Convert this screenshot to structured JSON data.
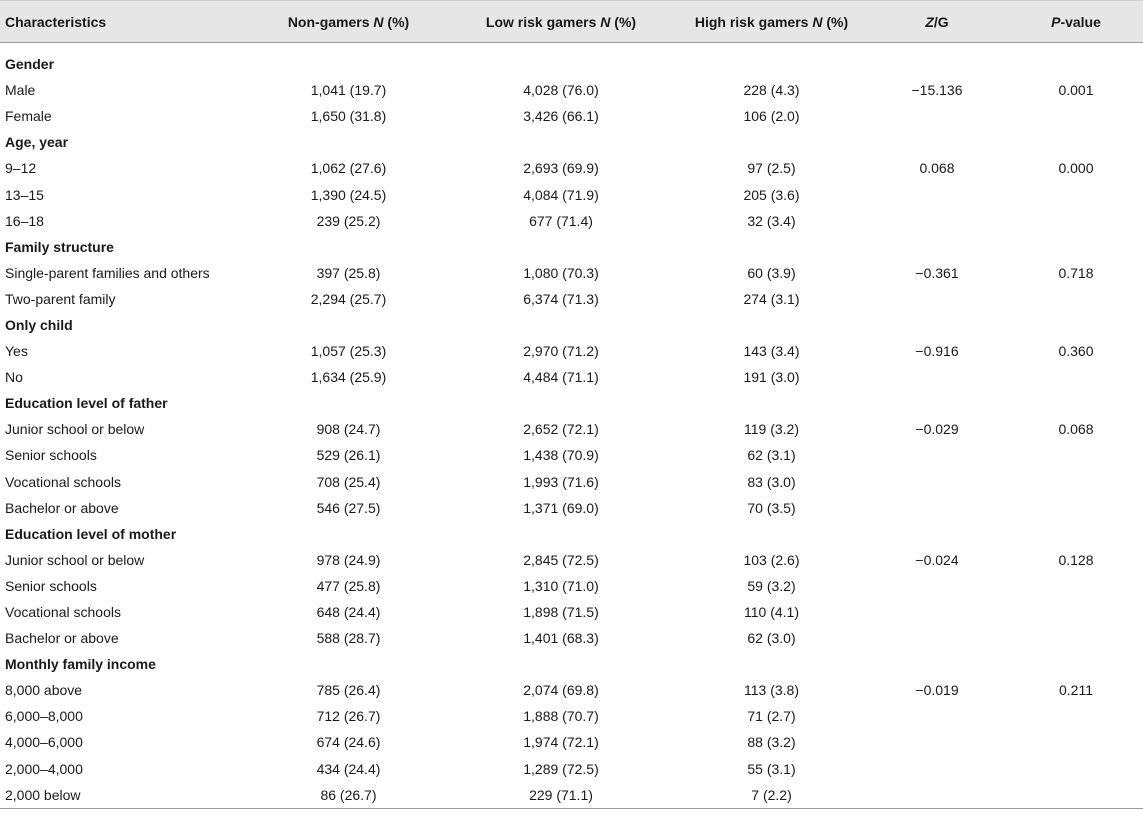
{
  "table": {
    "headers": {
      "characteristics": "Characteristics",
      "non_gamers_pre": "Non-gamers ",
      "non_gamers_n": "N",
      "non_gamers_post": " (%)",
      "low_risk_pre": "Low risk gamers ",
      "low_risk_n": "N",
      "low_risk_post": " (%)",
      "high_risk_pre": "High risk gamers ",
      "high_risk_n": "N",
      "high_risk_post": " (%)",
      "zg_z": "Z",
      "zg_post": "/G",
      "p_p": "P",
      "p_post": "-value"
    },
    "rows": [
      {
        "label": "Gender",
        "group": true,
        "non": "",
        "low": "",
        "high": "",
        "zg": "",
        "p": ""
      },
      {
        "label": "Male",
        "non": "1,041 (19.7)",
        "low": "4,028 (76.0)",
        "high": "228 (4.3)",
        "zg": "−15.136",
        "p": "0.001"
      },
      {
        "label": "Female",
        "non": "1,650 (31.8)",
        "low": "3,426 (66.1)",
        "high": "106 (2.0)",
        "zg": "",
        "p": ""
      },
      {
        "label": "Age, year",
        "group": true,
        "non": "",
        "low": "",
        "high": "",
        "zg": "",
        "p": ""
      },
      {
        "label": "9–12",
        "non": "1,062 (27.6)",
        "low": "2,693 (69.9)",
        "high": "97 (2.5)",
        "zg": "0.068",
        "p": "0.000"
      },
      {
        "label": "13–15",
        "non": "1,390 (24.5)",
        "low": "4,084 (71.9)",
        "high": "205 (3.6)",
        "zg": "",
        "p": ""
      },
      {
        "label": "16–18",
        "non": "239 (25.2)",
        "low": "677 (71.4)",
        "high": "32 (3.4)",
        "zg": "",
        "p": ""
      },
      {
        "label": "Family structure",
        "group": true,
        "non": "",
        "low": "",
        "high": "",
        "zg": "",
        "p": ""
      },
      {
        "label": "Single-parent families and others",
        "non": "397 (25.8)",
        "low": "1,080 (70.3)",
        "high": "60 (3.9)",
        "zg": "−0.361",
        "p": "0.718"
      },
      {
        "label": "Two-parent family",
        "non": "2,294 (25.7)",
        "low": "6,374 (71.3)",
        "high": "274 (3.1)",
        "zg": "",
        "p": ""
      },
      {
        "label": "Only child",
        "group": true,
        "non": "",
        "low": "",
        "high": "",
        "zg": "",
        "p": ""
      },
      {
        "label": "Yes",
        "non": "1,057 (25.3)",
        "low": "2,970 (71.2)",
        "high": "143 (3.4)",
        "zg": "−0.916",
        "p": "0.360"
      },
      {
        "label": "No",
        "non": "1,634 (25.9)",
        "low": "4,484 (71.1)",
        "high": "191 (3.0)",
        "zg": "",
        "p": ""
      },
      {
        "label": "Education level of father",
        "group": true,
        "non": "",
        "low": "",
        "high": "",
        "zg": "",
        "p": ""
      },
      {
        "label": "Junior school or below",
        "non": "908 (24.7)",
        "low": "2,652 (72.1)",
        "high": "119 (3.2)",
        "zg": "−0.029",
        "p": "0.068"
      },
      {
        "label": "Senior schools",
        "non": "529 (26.1)",
        "low": "1,438 (70.9)",
        "high": "62 (3.1)",
        "zg": "",
        "p": ""
      },
      {
        "label": "Vocational schools",
        "non": "708 (25.4)",
        "low": "1,993 (71.6)",
        "high": "83 (3.0)",
        "zg": "",
        "p": ""
      },
      {
        "label": "Bachelor or above",
        "non": "546 (27.5)",
        "low": "1,371 (69.0)",
        "high": "70 (3.5)",
        "zg": "",
        "p": ""
      },
      {
        "label": "Education level of mother",
        "group": true,
        "non": "",
        "low": "",
        "high": "",
        "zg": "",
        "p": ""
      },
      {
        "label": "Junior school or below",
        "non": "978 (24.9)",
        "low": "2,845 (72.5)",
        "high": "103 (2.6)",
        "zg": "−0.024",
        "p": "0.128"
      },
      {
        "label": "Senior schools",
        "non": "477 (25.8)",
        "low": "1,310 (71.0)",
        "high": "59 (3.2)",
        "zg": "",
        "p": ""
      },
      {
        "label": "Vocational schools",
        "non": "648 (24.4)",
        "low": "1,898 (71.5)",
        "high": "110 (4.1)",
        "zg": "",
        "p": ""
      },
      {
        "label": "Bachelor or above",
        "non": "588 (28.7)",
        "low": "1,401 (68.3)",
        "high": "62 (3.0)",
        "zg": "",
        "p": ""
      },
      {
        "label": "Monthly family income",
        "group": true,
        "non": "",
        "low": "",
        "high": "",
        "zg": "",
        "p": ""
      },
      {
        "label": "8,000 above",
        "non": "785 (26.4)",
        "low": "2,074 (69.8)",
        "high": "113 (3.8)",
        "zg": "−0.019",
        "p": "0.211"
      },
      {
        "label": "6,000–8,000",
        "non": "712 (26.7)",
        "low": "1,888 (70.7)",
        "high": "71 (2.7)",
        "zg": "",
        "p": ""
      },
      {
        "label": "4,000–6,000",
        "non": "674 (24.6)",
        "low": "1,974 (72.1)",
        "high": "88 (3.2)",
        "zg": "",
        "p": ""
      },
      {
        "label": "2,000–4,000",
        "non": "434 (24.4)",
        "low": "1,289 (72.5)",
        "high": "55 (3.1)",
        "zg": "",
        "p": ""
      },
      {
        "label": "2,000 below",
        "non": "86 (26.7)",
        "low": "229 (71.1)",
        "high": "7 (2.2)",
        "zg": "",
        "p": ""
      }
    ]
  }
}
